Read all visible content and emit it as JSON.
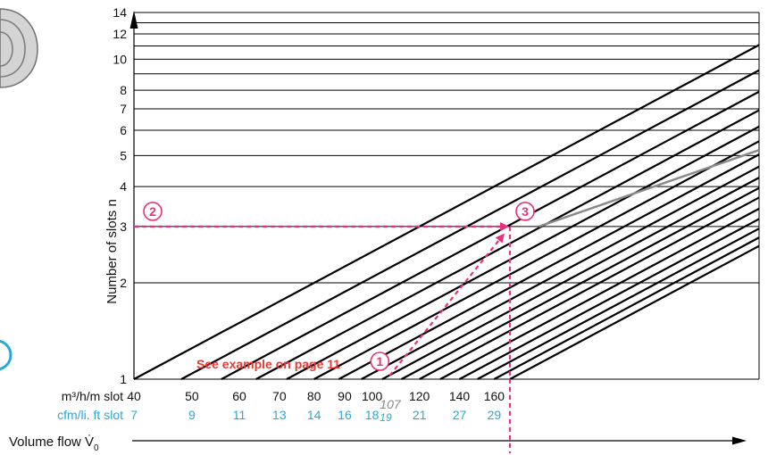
{
  "chart_data": {
    "type": "line",
    "x_scale": "log",
    "y_scale": "log",
    "xlim": [
      40,
      300
    ],
    "ylim": [
      1,
      14
    ],
    "ylabel": "Number of slots n",
    "y_ticks": [
      1,
      2,
      3,
      4,
      5,
      6,
      7,
      8,
      10,
      12,
      14
    ],
    "y_grid_minor": [
      9,
      11,
      13
    ],
    "x_ticks_primary": [
      40,
      50,
      60,
      70,
      80,
      90,
      100,
      120,
      140,
      160
    ],
    "x_ticks_primary_labels": [
      "40",
      "50",
      "60",
      "70",
      "80",
      "90",
      "100",
      "120",
      "140",
      "160"
    ],
    "x_ticks_secondary_labels": [
      "7",
      "9",
      "11",
      "13",
      "14",
      "16",
      "18",
      "21",
      "27",
      "29"
    ],
    "x_unit_primary": "m³/h/m slot",
    "x_unit_secondary": "cfm/li. ft slot",
    "x_axis_title": "Volume flow V̇",
    "x_axis_subscript": "0",
    "line_start_x": [
      40,
      48,
      56,
      64,
      72,
      80,
      88,
      96,
      104,
      112,
      120,
      130,
      140,
      150,
      160,
      170
    ],
    "grey_line_x": [
      190,
      300
    ],
    "grey_line_y": [
      3,
      5.2
    ],
    "example": {
      "text": "See example on page 11",
      "marker_1": "1",
      "marker_2": "2",
      "marker_3": "3",
      "start_x": 107,
      "start_x_label": "107",
      "start_x_secondary_label": "19",
      "slots": 3,
      "result_x": 170
    },
    "colors": {
      "example": "#e8307e",
      "example_text": "#e53935",
      "secondary_axis": "#29a8d8",
      "grey_line": "#8a8a8a",
      "line": "#000000"
    },
    "grid": true
  }
}
